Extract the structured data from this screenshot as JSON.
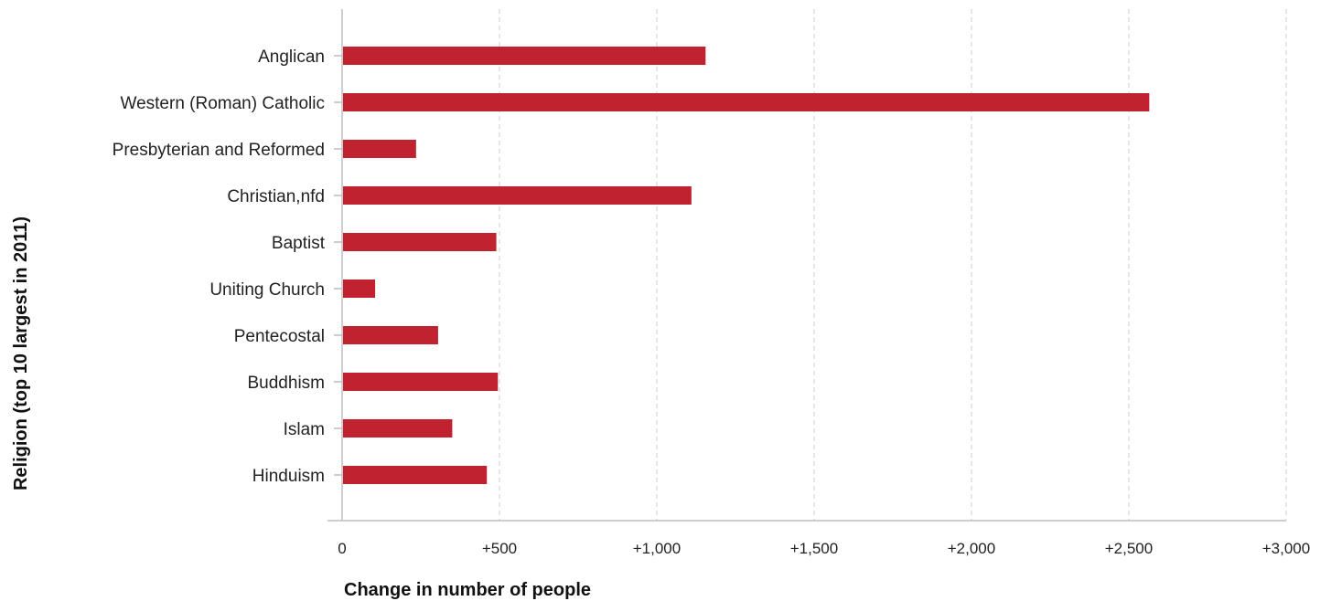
{
  "chart_data": {
    "type": "bar",
    "orientation": "horizontal",
    "categories": [
      "Anglican",
      "Western (Roman) Catholic",
      "Presbyterian and Reformed",
      "Christian,nfd",
      "Baptist",
      "Uniting Church",
      "Pentecostal",
      "Buddhism",
      "Islam",
      "Hinduism"
    ],
    "values": [
      1155,
      2565,
      235,
      1110,
      490,
      105,
      305,
      495,
      350,
      460
    ],
    "xlabel": "Change in number of people",
    "ylabel": "Religion (top 10 largest in 2011)",
    "xlim": [
      0,
      3000
    ],
    "xticks": [
      0,
      500,
      1000,
      1500,
      2000,
      2500,
      3000
    ],
    "xtick_labels": [
      "0",
      "+500",
      "+1,000",
      "+1,500",
      "+2,000",
      "+2,500",
      "+3,000"
    ],
    "grid": "vertical dashed",
    "legend": "none",
    "bar_color": "#c0222f"
  }
}
